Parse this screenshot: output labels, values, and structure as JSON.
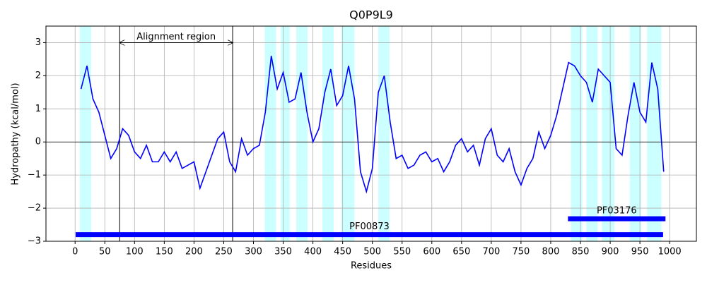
{
  "chart_data": {
    "type": "line",
    "title": "Q0P9L9",
    "xlabel": "Residues",
    "ylabel": "Hydropathy (kcal/mol)",
    "x": [
      10,
      20,
      30,
      40,
      50,
      60,
      70,
      80,
      90,
      100,
      110,
      120,
      130,
      140,
      150,
      160,
      170,
      180,
      190,
      200,
      210,
      220,
      230,
      240,
      250,
      260,
      270,
      280,
      290,
      300,
      310,
      320,
      330,
      340,
      350,
      360,
      370,
      380,
      390,
      400,
      410,
      420,
      430,
      440,
      450,
      460,
      470,
      480,
      490,
      500,
      510,
      520,
      530,
      540,
      550,
      560,
      570,
      580,
      590,
      600,
      610,
      620,
      630,
      640,
      650,
      660,
      670,
      680,
      690,
      700,
      710,
      720,
      730,
      740,
      750,
      760,
      770,
      780,
      790,
      800,
      810,
      820,
      830,
      840,
      850,
      860,
      870,
      880,
      890,
      900,
      910,
      920,
      930,
      940,
      950,
      960,
      970,
      980,
      990
    ],
    "series": [
      {
        "name": "Hydropathy",
        "color": "#0000ff",
        "values": [
          1.6,
          2.3,
          1.3,
          0.9,
          0.2,
          -0.5,
          -0.2,
          0.4,
          0.2,
          -0.3,
          -0.5,
          -0.1,
          -0.6,
          -0.6,
          -0.3,
          -0.6,
          -0.3,
          -0.8,
          -0.7,
          -0.6,
          -1.4,
          -0.9,
          -0.4,
          0.1,
          0.3,
          -0.6,
          -0.9,
          0.1,
          -0.4,
          -0.2,
          -0.1,
          0.9,
          2.6,
          1.6,
          2.1,
          1.2,
          1.3,
          2.1,
          0.9,
          0.0,
          0.4,
          1.5,
          2.2,
          1.1,
          1.4,
          2.3,
          1.3,
          -0.9,
          -1.5,
          -0.8,
          1.5,
          2.0,
          0.6,
          -0.5,
          -0.4,
          -0.8,
          -0.7,
          -0.4,
          -0.3,
          -0.6,
          -0.5,
          -0.9,
          -0.6,
          -0.1,
          0.1,
          -0.3,
          -0.1,
          -0.7,
          0.1,
          0.4,
          -0.4,
          -0.6,
          -0.2,
          -0.9,
          -1.3,
          -0.8,
          -0.5,
          0.3,
          -0.2,
          0.2,
          0.8,
          1.6,
          2.4,
          2.3,
          2.0,
          1.8,
          1.2,
          2.2,
          2.0,
          1.8,
          -0.2,
          -0.4,
          0.8,
          1.8,
          0.9,
          0.6,
          2.4,
          1.6,
          -0.9
        ]
      }
    ],
    "xlim": [
      -49,
      1045
    ],
    "ylim": [
      -3,
      3.5
    ],
    "xticks": [
      0,
      50,
      100,
      150,
      200,
      250,
      300,
      350,
      400,
      450,
      500,
      550,
      600,
      650,
      700,
      750,
      800,
      850,
      900,
      950,
      1000
    ],
    "yticks": [
      {
        "value": -3,
        "label": "−3"
      },
      {
        "value": -2,
        "label": "−2"
      },
      {
        "value": -1,
        "label": "−1"
      },
      0,
      1,
      2,
      3
    ],
    "grid": true,
    "hline": 0,
    "region_color": "#00ffff",
    "highlight_regions": [
      [
        8,
        27
      ],
      [
        319,
        338
      ],
      [
        346,
        361
      ],
      [
        372,
        391
      ],
      [
        416,
        435
      ],
      [
        448,
        470
      ],
      [
        510,
        529
      ],
      [
        834,
        853
      ],
      [
        860,
        879
      ],
      [
        886,
        907
      ],
      [
        933,
        952
      ],
      [
        962,
        986
      ]
    ],
    "vlines": [
      75,
      265
    ],
    "annotation": {
      "text": "Alignment region",
      "arrow_y": 3
    },
    "domains": [
      {
        "name": "PF00873",
        "start": 1,
        "end": 989,
        "y": -2.8,
        "color": "#0000ff"
      },
      {
        "name": "PF03176",
        "start": 829,
        "end": 993,
        "y": -2.32,
        "color": "#0000ff"
      }
    ]
  }
}
